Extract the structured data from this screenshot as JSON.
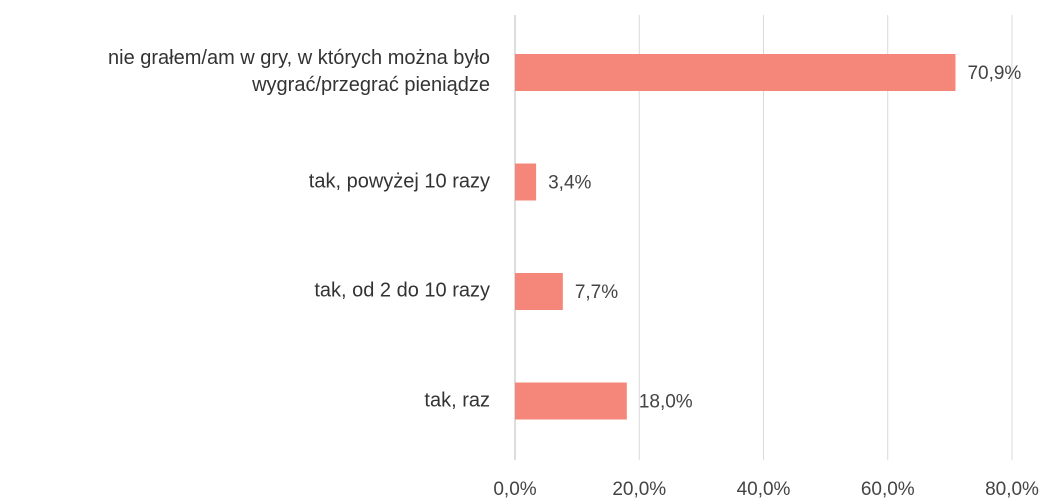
{
  "chart_data": {
    "type": "hbar",
    "categories": [
      "nie grałem/am w gry, w których można było wygrać/przegrać pieniądze",
      "tak, powyżej 10 razy",
      "tak, od 2 do 10 razy",
      "tak, raz"
    ],
    "values": [
      70.9,
      3.4,
      7.7,
      18.0
    ],
    "value_labels": [
      "70,9%",
      "3,4%",
      "7,7%",
      "18,0%"
    ],
    "color": "#f4877a",
    "xlim": [
      0,
      80
    ],
    "xticks": [
      {
        "value": 0,
        "label": "0,0%"
      },
      {
        "value": 20,
        "label": "20,0%"
      },
      {
        "value": 40,
        "label": "40,0%"
      },
      {
        "value": 60,
        "label": "60,0%"
      },
      {
        "value": 80,
        "label": "80,0%"
      }
    ],
    "grid": true
  }
}
